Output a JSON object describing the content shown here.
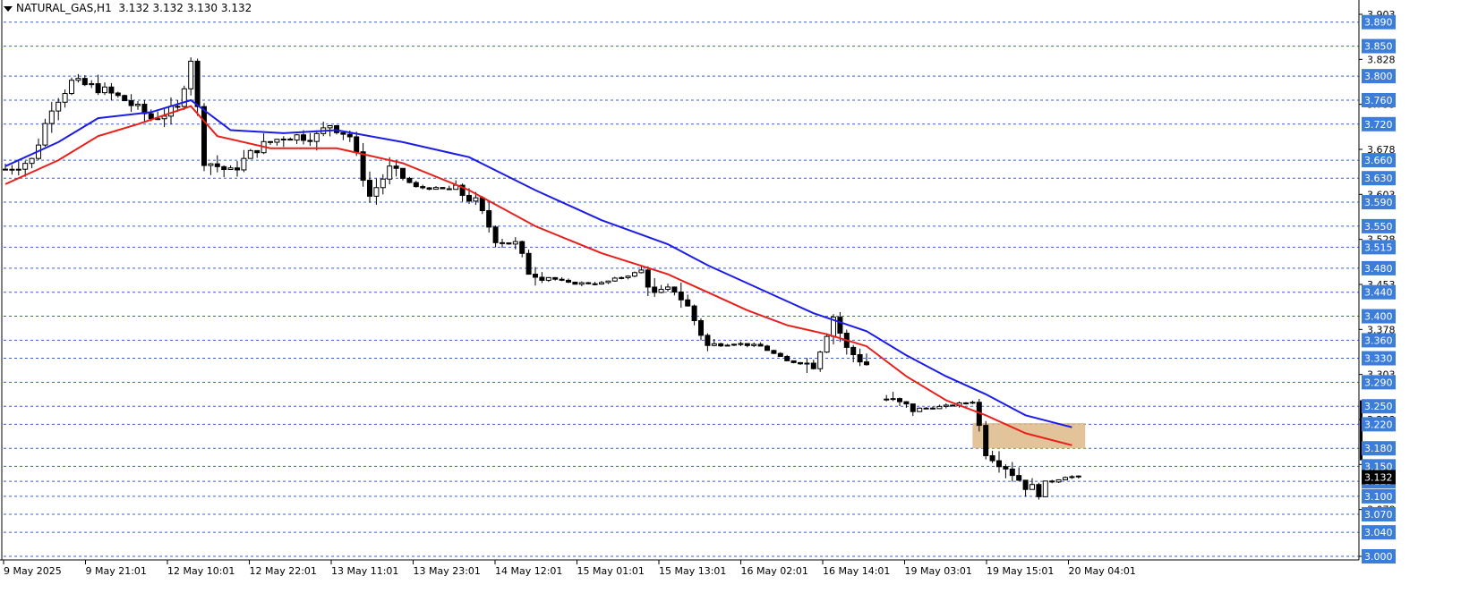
{
  "header": {
    "symbol_label": "NATURAL_GAS,H1",
    "ohlc": "3.132 3.132 3.130 3.132"
  },
  "colors": {
    "grid": "#3a5fcd",
    "ema_fast": "#e8201c",
    "ema_slow": "#1c1ce8",
    "zone": "#deb887",
    "candle_up": "#ffffff",
    "candle_down": "#000000",
    "axis": "#000000",
    "label_bg": "#3b7dd8"
  },
  "chart_data": {
    "type": "candlestick",
    "timeframe": "H1",
    "ylim": [
      3.0,
      3.903
    ],
    "price_axis_ticks": [
      "3.903",
      "3.828",
      "3.753",
      "3.678",
      "3.603",
      "3.528",
      "3.453",
      "3.378",
      "3.303",
      "3.228",
      "3.153",
      "3.078",
      "3.000"
    ],
    "level_lines": [
      "3.890",
      "3.850",
      "3.800",
      "3.760",
      "3.720",
      "3.660",
      "3.630",
      "3.590",
      "3.550",
      "3.515",
      "3.480",
      "3.440",
      "3.400",
      "3.360",
      "3.330",
      "3.290",
      "3.250",
      "3.220",
      "3.180",
      "3.150",
      "3.125",
      "3.100",
      "3.070",
      "3.040",
      "3.000"
    ],
    "current_price": "3.132",
    "time_axis_labels": [
      "9 May 2025",
      "9 May 21:01",
      "12 May 10:01",
      "12 May 22:01",
      "13 May 11:01",
      "13 May 23:01",
      "14 May 12:01",
      "15 May 01:01",
      "15 May 13:01",
      "16 May 02:01",
      "16 May 14:01",
      "19 May 03:01",
      "19 May 15:01",
      "20 May 04:01"
    ],
    "bar_count": 200,
    "price_path": [
      [
        0,
        3.645
      ],
      [
        4,
        3.66
      ],
      [
        7,
        3.75
      ],
      [
        10,
        3.79
      ],
      [
        14,
        3.78
      ],
      [
        18,
        3.76
      ],
      [
        22,
        3.73
      ],
      [
        26,
        3.745
      ],
      [
        28,
        3.83
      ],
      [
        30,
        3.66
      ],
      [
        34,
        3.64
      ],
      [
        38,
        3.68
      ],
      [
        42,
        3.7
      ],
      [
        47,
        3.7
      ],
      [
        49,
        3.72
      ],
      [
        52,
        3.7
      ],
      [
        55,
        3.6
      ],
      [
        58,
        3.645
      ],
      [
        62,
        3.615
      ],
      [
        68,
        3.61
      ],
      [
        71,
        3.59
      ],
      [
        74,
        3.53
      ],
      [
        77,
        3.52
      ],
      [
        79,
        3.475
      ],
      [
        82,
        3.465
      ],
      [
        85,
        3.455
      ],
      [
        90,
        3.455
      ],
      [
        96,
        3.475
      ],
      [
        98,
        3.435
      ],
      [
        101,
        3.445
      ],
      [
        103,
        3.415
      ],
      [
        106,
        3.35
      ],
      [
        110,
        3.355
      ],
      [
        114,
        3.35
      ],
      [
        118,
        3.325
      ],
      [
        122,
        3.32
      ],
      [
        125,
        3.4
      ],
      [
        127,
        3.345
      ],
      [
        130,
        3.32
      ],
      [
        133,
        3.262
      ],
      [
        137,
        3.245
      ],
      [
        142,
        3.25
      ],
      [
        146,
        3.258
      ],
      [
        148,
        3.175
      ],
      [
        151,
        3.15
      ],
      [
        154,
        3.118
      ],
      [
        156,
        3.108
      ],
      [
        158,
        3.125
      ],
      [
        160,
        3.133
      ],
      [
        162,
        3.132
      ]
    ],
    "gap_after_bar": 130,
    "ema_fast_points": [
      [
        0,
        3.62
      ],
      [
        8,
        3.66
      ],
      [
        14,
        3.7
      ],
      [
        20,
        3.72
      ],
      [
        28,
        3.75
      ],
      [
        32,
        3.7
      ],
      [
        40,
        3.68
      ],
      [
        50,
        3.68
      ],
      [
        60,
        3.655
      ],
      [
        70,
        3.61
      ],
      [
        80,
        3.55
      ],
      [
        90,
        3.505
      ],
      [
        100,
        3.47
      ],
      [
        106,
        3.44
      ],
      [
        112,
        3.41
      ],
      [
        118,
        3.385
      ],
      [
        124,
        3.37
      ],
      [
        130,
        3.35
      ],
      [
        136,
        3.3
      ],
      [
        142,
        3.26
      ],
      [
        148,
        3.235
      ],
      [
        154,
        3.205
      ],
      [
        161,
        3.185
      ]
    ],
    "ema_slow_points": [
      [
        0,
        3.65
      ],
      [
        8,
        3.69
      ],
      [
        14,
        3.73
      ],
      [
        22,
        3.74
      ],
      [
        28,
        3.76
      ],
      [
        34,
        3.71
      ],
      [
        42,
        3.705
      ],
      [
        50,
        3.71
      ],
      [
        60,
        3.69
      ],
      [
        70,
        3.665
      ],
      [
        80,
        3.61
      ],
      [
        90,
        3.56
      ],
      [
        100,
        3.52
      ],
      [
        106,
        3.485
      ],
      [
        114,
        3.445
      ],
      [
        122,
        3.405
      ],
      [
        130,
        3.375
      ],
      [
        136,
        3.335
      ],
      [
        142,
        3.3
      ],
      [
        148,
        3.27
      ],
      [
        154,
        3.235
      ],
      [
        161,
        3.215
      ]
    ],
    "zone": {
      "price_top": 3.222,
      "price_bottom": 3.18,
      "bar_start": 146,
      "bar_end": 163
    },
    "grid": true
  }
}
